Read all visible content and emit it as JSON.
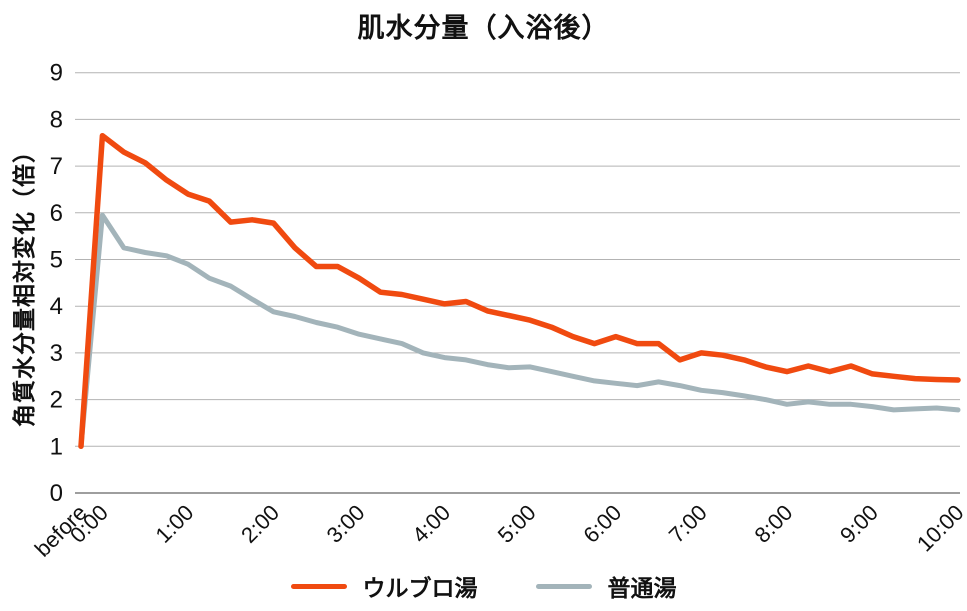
{
  "chart_data": {
    "type": "line",
    "title": "肌水分量（入浴後）",
    "ylabel": "角質水分量相対変化（倍）",
    "xlabel": "",
    "ylim": [
      0,
      9
    ],
    "yticks": [
      0,
      1,
      2,
      3,
      4,
      5,
      6,
      7,
      8,
      9
    ],
    "grid": "horizontal",
    "legend_position": "bottom",
    "x_interval_minutes": 15,
    "categories": [
      "before",
      "0:00",
      "0:15",
      "0:30",
      "0:45",
      "1:00",
      "1:15",
      "1:30",
      "1:45",
      "2:00",
      "2:15",
      "2:30",
      "2:45",
      "3:00",
      "3:15",
      "3:30",
      "3:45",
      "4:00",
      "4:15",
      "4:30",
      "4:45",
      "5:00",
      "5:15",
      "5:30",
      "5:45",
      "6:00",
      "6:15",
      "6:30",
      "6:45",
      "7:00",
      "7:15",
      "7:30",
      "7:45",
      "8:00",
      "8:15",
      "8:30",
      "8:45",
      "9:00",
      "9:15",
      "9:30",
      "9:45",
      "10:00"
    ],
    "x_tick_labels": [
      "before",
      "0:00",
      "1:00",
      "2:00",
      "3:00",
      "4:00",
      "5:00",
      "6:00",
      "7:00",
      "8:00",
      "9:00",
      "10:00"
    ],
    "x_tick_indices": [
      0,
      1,
      5,
      9,
      13,
      17,
      21,
      25,
      29,
      33,
      37,
      41
    ],
    "series": [
      {
        "name": "ウルブロ湯",
        "color": "#f04a10",
        "stroke_width": 5.5,
        "values": [
          1.0,
          7.65,
          7.3,
          7.07,
          6.7,
          6.4,
          6.25,
          5.8,
          5.85,
          5.78,
          5.25,
          4.85,
          4.85,
          4.6,
          4.3,
          4.25,
          4.15,
          4.05,
          4.1,
          3.9,
          3.8,
          3.7,
          3.55,
          3.35,
          3.2,
          3.35,
          3.2,
          3.2,
          2.85,
          3.0,
          2.95,
          2.85,
          2.7,
          2.6,
          2.72,
          2.6,
          2.72,
          2.55,
          2.5,
          2.45,
          2.43,
          2.42
        ]
      },
      {
        "name": "普通湯",
        "color": "#a3b4ba",
        "stroke_width": 5,
        "values": [
          1.0,
          5.95,
          5.25,
          5.15,
          5.08,
          4.9,
          4.6,
          4.43,
          4.15,
          3.88,
          3.78,
          3.65,
          3.55,
          3.4,
          3.3,
          3.2,
          3.0,
          2.9,
          2.85,
          2.75,
          2.68,
          2.7,
          2.6,
          2.5,
          2.4,
          2.35,
          2.3,
          2.38,
          2.3,
          2.2,
          2.15,
          2.08,
          2.0,
          1.9,
          1.95,
          1.9,
          1.9,
          1.85,
          1.78,
          1.8,
          1.82,
          1.78
        ]
      }
    ],
    "colors": {
      "grid": "#b3b3b3",
      "axis": "#7f7f7f",
      "text": "#111111"
    }
  }
}
